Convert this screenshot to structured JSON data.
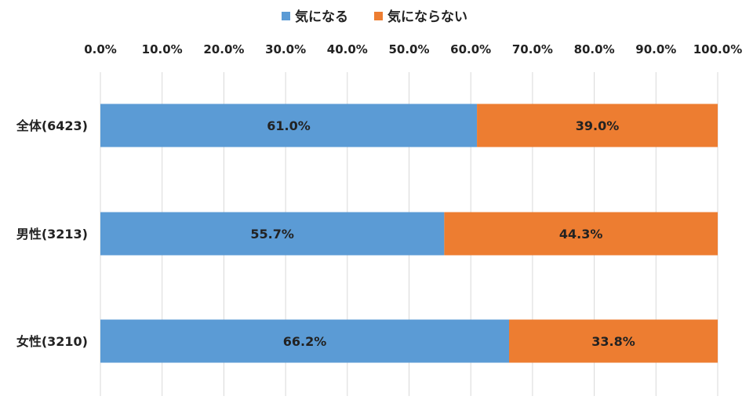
{
  "chart_data": {
    "type": "bar",
    "orientation": "horizontal",
    "stacked": "percent",
    "title": "",
    "xlabel": "",
    "ylabel": "",
    "xlim": [
      0,
      100
    ],
    "x_ticks": [
      "0.0%",
      "10.0%",
      "20.0%",
      "30.0%",
      "40.0%",
      "50.0%",
      "60.0%",
      "70.0%",
      "80.0%",
      "90.0%",
      "100.0%"
    ],
    "x_axis_position": "top",
    "grid": "vertical",
    "legend_position": "top",
    "categories": [
      "全体(6423)",
      "男性(3213)",
      "女性(3210)"
    ],
    "series": [
      {
        "name": "気になる",
        "color": "#5B9BD5",
        "values": [
          61.0,
          55.7,
          66.2
        ],
        "labels": [
          "61.0%",
          "55.7%",
          "66.2%"
        ]
      },
      {
        "name": "気にならない",
        "color": "#ED7D31",
        "values": [
          39.0,
          44.3,
          33.8
        ],
        "labels": [
          "39.0%",
          "44.3%",
          "33.8%"
        ]
      }
    ]
  }
}
